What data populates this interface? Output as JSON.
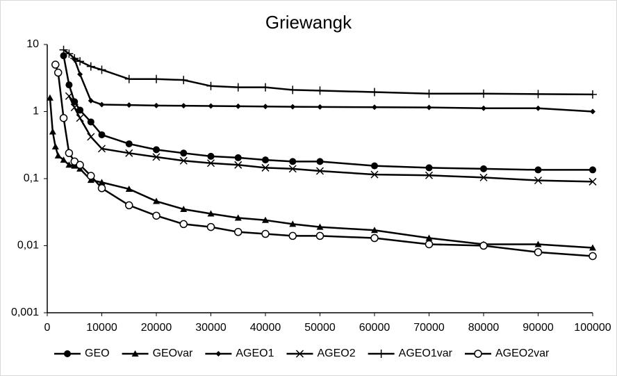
{
  "chart_data": {
    "type": "line",
    "title": "Griewangk",
    "ylog": true,
    "grid": false,
    "legend": "bottom",
    "xlim": [
      0,
      100000
    ],
    "xticks": [
      0,
      10000,
      20000,
      30000,
      40000,
      50000,
      60000,
      70000,
      80000,
      90000,
      100000
    ],
    "ylim": [
      0.001,
      10
    ],
    "yticks": [
      {
        "value": 0.001,
        "label": "0,001"
      },
      {
        "value": 0.01,
        "label": "0,01"
      },
      {
        "value": 0.1,
        "label": "0,1"
      },
      1,
      10
    ],
    "series": [
      {
        "name": "GEO",
        "color": "#000000",
        "marker": "circle",
        "x": [
          3000,
          4000,
          5000,
          6000,
          8000,
          10000,
          15000,
          20000,
          25000,
          30000,
          35000,
          40000,
          45000,
          50000,
          60000,
          70000,
          80000,
          90000,
          100000
        ],
        "values": [
          6.8,
          2.5,
          1.4,
          1.05,
          0.7,
          0.45,
          0.33,
          0.27,
          0.24,
          0.215,
          0.205,
          0.19,
          0.18,
          0.18,
          0.155,
          0.145,
          0.14,
          0.135,
          0.135
        ]
      },
      {
        "name": "GEOvar",
        "color": "#000000",
        "marker": "triangle",
        "x": [
          500,
          1000,
          1500,
          2000,
          3000,
          4000,
          5000,
          6000,
          8000,
          10000,
          15000,
          20000,
          25000,
          30000,
          35000,
          40000,
          45000,
          50000,
          60000,
          70000,
          80000,
          90000,
          100000
        ],
        "values": [
          1.6,
          0.5,
          0.3,
          0.22,
          0.19,
          0.16,
          0.155,
          0.14,
          0.095,
          0.088,
          0.07,
          0.046,
          0.035,
          0.03,
          0.026,
          0.024,
          0.021,
          0.019,
          0.017,
          0.013,
          0.0105,
          0.0105,
          0.0093
        ]
      },
      {
        "name": "AGEO1",
        "color": "#000000",
        "marker": "diamond",
        "x": [
          5000,
          6000,
          8000,
          10000,
          15000,
          20000,
          25000,
          30000,
          35000,
          40000,
          45000,
          50000,
          60000,
          70000,
          80000,
          90000,
          100000
        ],
        "values": [
          6,
          3.6,
          1.45,
          1.27,
          1.25,
          1.23,
          1.22,
          1.21,
          1.2,
          1.19,
          1.18,
          1.17,
          1.16,
          1.15,
          1.12,
          1.12,
          1.0
        ]
      },
      {
        "name": "AGEO2",
        "color": "#000000",
        "marker": "x",
        "x": [
          4000,
          5000,
          6000,
          8000,
          10000,
          15000,
          20000,
          25000,
          30000,
          35000,
          40000,
          45000,
          50000,
          60000,
          70000,
          80000,
          90000,
          100000
        ],
        "values": [
          1.7,
          1.15,
          0.8,
          0.42,
          0.28,
          0.24,
          0.21,
          0.185,
          0.17,
          0.16,
          0.145,
          0.14,
          0.13,
          0.115,
          0.112,
          0.104,
          0.094,
          0.09
        ]
      },
      {
        "name": "AGEO1var",
        "color": "#000000",
        "marker": "plus",
        "x": [
          3000,
          4000,
          5000,
          6000,
          8000,
          10000,
          15000,
          20000,
          25000,
          30000,
          35000,
          40000,
          45000,
          50000,
          60000,
          70000,
          80000,
          90000,
          100000
        ],
        "values": [
          8.3,
          7.3,
          6.2,
          5.6,
          4.7,
          4.2,
          3.05,
          3.05,
          2.95,
          2.4,
          2.3,
          2.3,
          2.1,
          2.05,
          1.95,
          1.85,
          1.85,
          1.82,
          1.8
        ]
      },
      {
        "name": "AGEO2var",
        "color": "#000000",
        "marker": "open-circle",
        "x": [
          1500,
          2000,
          3000,
          4000,
          5000,
          6000,
          8000,
          10000,
          15000,
          20000,
          25000,
          30000,
          35000,
          40000,
          45000,
          50000,
          60000,
          70000,
          80000,
          90000,
          100000
        ],
        "values": [
          5.0,
          3.8,
          0.8,
          0.24,
          0.18,
          0.16,
          0.11,
          0.072,
          0.04,
          0.028,
          0.021,
          0.019,
          0.016,
          0.015,
          0.014,
          0.014,
          0.013,
          0.0105,
          0.01,
          0.008,
          0.007
        ]
      }
    ]
  }
}
